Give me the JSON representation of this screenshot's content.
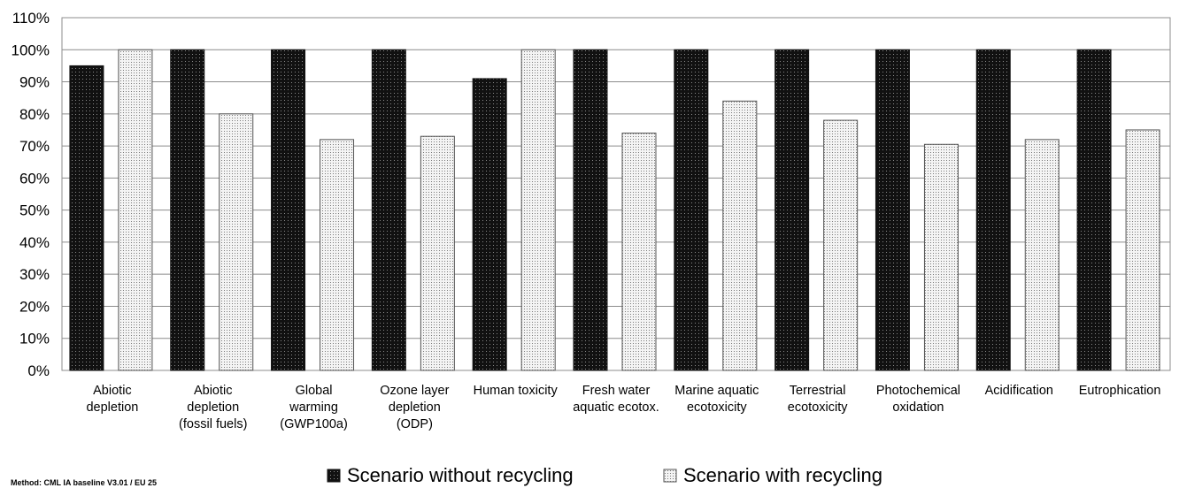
{
  "chart_data": {
    "type": "bar",
    "title": "",
    "xlabel": "",
    "ylabel": "",
    "ylim": [
      0,
      110
    ],
    "y_ticks": [
      "0%",
      "10%",
      "20%",
      "30%",
      "40%",
      "50%",
      "60%",
      "70%",
      "80%",
      "90%",
      "100%",
      "110%"
    ],
    "categories": [
      [
        "Abiotic",
        "depletion"
      ],
      [
        "Abiotic",
        "depletion",
        "(fossil fuels)"
      ],
      [
        "Global",
        "warming",
        "(GWP100a)"
      ],
      [
        "Ozone layer",
        "depletion",
        "(ODP)"
      ],
      [
        "Human toxicity"
      ],
      [
        "Fresh water",
        "aquatic ecotox."
      ],
      [
        "Marine aquatic",
        "ecotoxicity"
      ],
      [
        "Terrestrial",
        "ecotoxicity"
      ],
      [
        "Photochemical",
        "oxidation"
      ],
      [
        "Acidification"
      ],
      [
        "Eutrophication"
      ]
    ],
    "series": [
      {
        "name": "Scenario without recycling",
        "color": "#111111",
        "values": [
          95,
          100,
          100,
          100,
          91,
          100,
          100,
          100,
          100,
          100,
          100
        ]
      },
      {
        "name": "Scenario with recycling",
        "color": "#e6e6e6",
        "values": [
          100,
          80,
          72,
          73,
          100,
          74,
          84,
          78,
          70.5,
          72,
          75
        ]
      }
    ],
    "grid": true,
    "legend_position": "bottom-center"
  },
  "footnote": "Method: CML IA baseline V3.01 / EU 25"
}
